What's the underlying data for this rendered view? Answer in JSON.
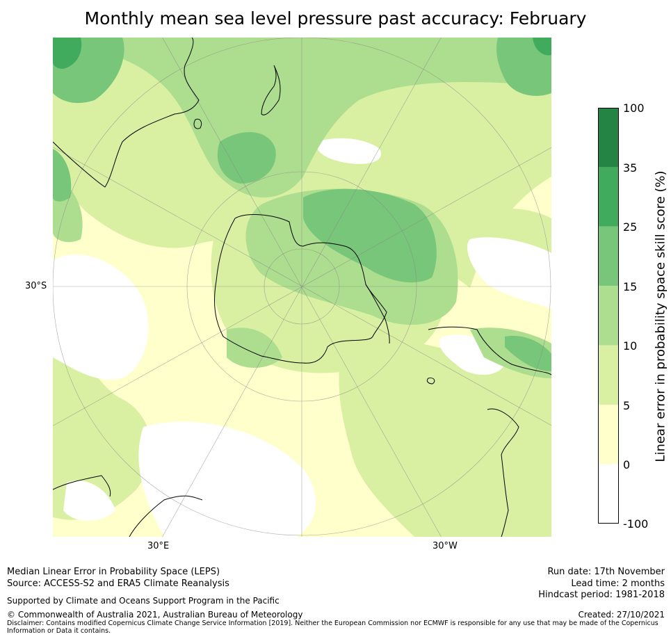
{
  "title": "Monthly mean sea level pressure past accuracy: February",
  "map": {
    "projection": "South polar stereographic",
    "lat_labels": [
      "30°S"
    ],
    "lon_labels": [
      "30°E",
      "30°W"
    ]
  },
  "colorbar": {
    "label": "Linear error in probability space skill score (%)",
    "ticks": [
      "100",
      "35",
      "25",
      "15",
      "10",
      "5",
      "0",
      "-100"
    ],
    "bins": [
      {
        "range": "35 to 100",
        "color": "#238443"
      },
      {
        "range": "25 to 35",
        "color": "#41ab5d"
      },
      {
        "range": "15 to 25",
        "color": "#78c679"
      },
      {
        "range": "10 to 15",
        "color": "#addd8e"
      },
      {
        "range": "5 to 10",
        "color": "#d9f0a3"
      },
      {
        "range": "0 to 5",
        "color": "#ffffcc"
      },
      {
        "range": "-100 to 0",
        "color": "#ffffff"
      }
    ]
  },
  "footer": {
    "line1": "Median Linear Error in Probability Space (LEPS)",
    "line2": "Source: ACCESS-S2 and ERA5 Climate Reanalysis",
    "support": "Supported by Climate and Oceans Support Program in the Pacific",
    "copyright": "© Commonwealth of Australia 2021, Australian Bureau of Meteorology",
    "disclaimer": "Disclaimer: Contains modified Copernicus Climate Change Service Information [2019]. Neither the European Commission nor ECMWF is responsible for any use that may be made of the Copernicus Information or Data it contains.",
    "run_date": "Run date: 17th November",
    "lead_time": "Lead time: 2 months",
    "hindcast": "Hindcast period: 1981-2018",
    "created": "Created: 27/10/2021"
  }
}
